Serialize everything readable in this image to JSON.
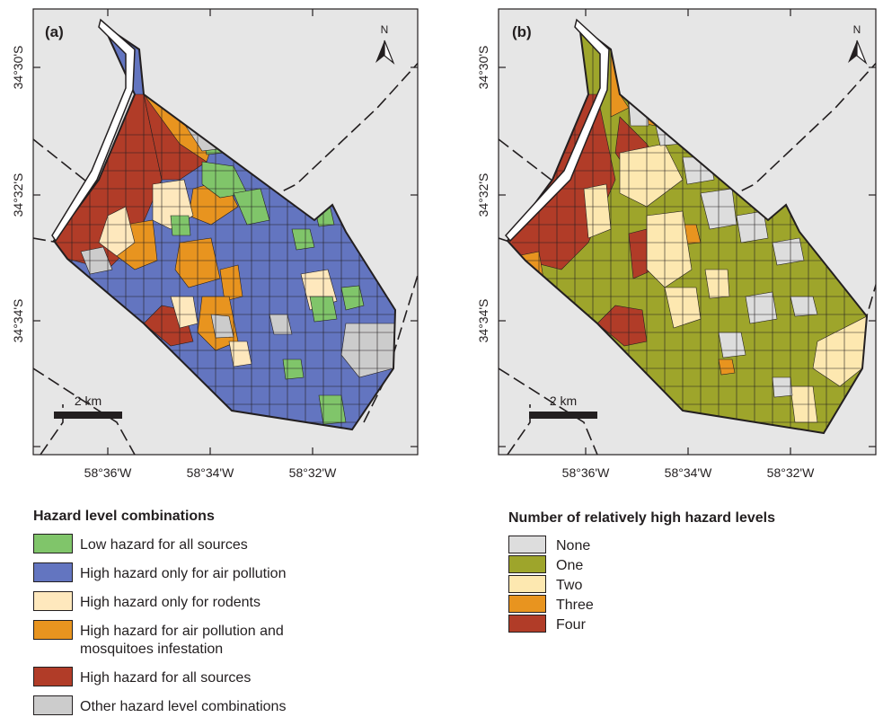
{
  "panels": [
    {
      "label": "(a)",
      "north": "N",
      "scale": "2 km",
      "lat_ticks": [
        "34°30'S",
        "34°32'S",
        "34°34'S"
      ],
      "lon_ticks": [
        "58°36'W",
        "58°34'W",
        "58°32'W"
      ]
    },
    {
      "label": "(b)",
      "north": "N",
      "scale": "2 km",
      "lat_ticks": [
        "34°30'S",
        "34°32'S",
        "34°34'S"
      ],
      "lon_ticks": [
        "58°36'W",
        "58°34'W",
        "58°32'W"
      ]
    }
  ],
  "legend_a": {
    "title": "Hazard level combinations",
    "items": [
      {
        "text": "Low hazard for all sources",
        "color": "#80c56a"
      },
      {
        "text": "High hazard only for air pollution",
        "color": "#6375c0"
      },
      {
        "text": "High hazard only for rodents",
        "color": "#fee8bd"
      },
      {
        "text": "High hazard for air pollution and",
        "text2": "mosquitoes infestation",
        "color": "#e8941f"
      },
      {
        "text": "High hazard for all sources",
        "color": "#b13c28"
      },
      {
        "text": "Other hazard level combinations",
        "color": "#cccccc"
      }
    ]
  },
  "legend_b": {
    "title": "Number of relatively high hazard levels",
    "items": [
      {
        "text": "None",
        "color": "#dddddd"
      },
      {
        "text": "One",
        "color": "#9ea52b"
      },
      {
        "text": "Two",
        "color": "#fde8b0"
      },
      {
        "text": "Three",
        "color": "#e8941f"
      },
      {
        "text": "Four",
        "color": "#b13c28"
      }
    ]
  }
}
